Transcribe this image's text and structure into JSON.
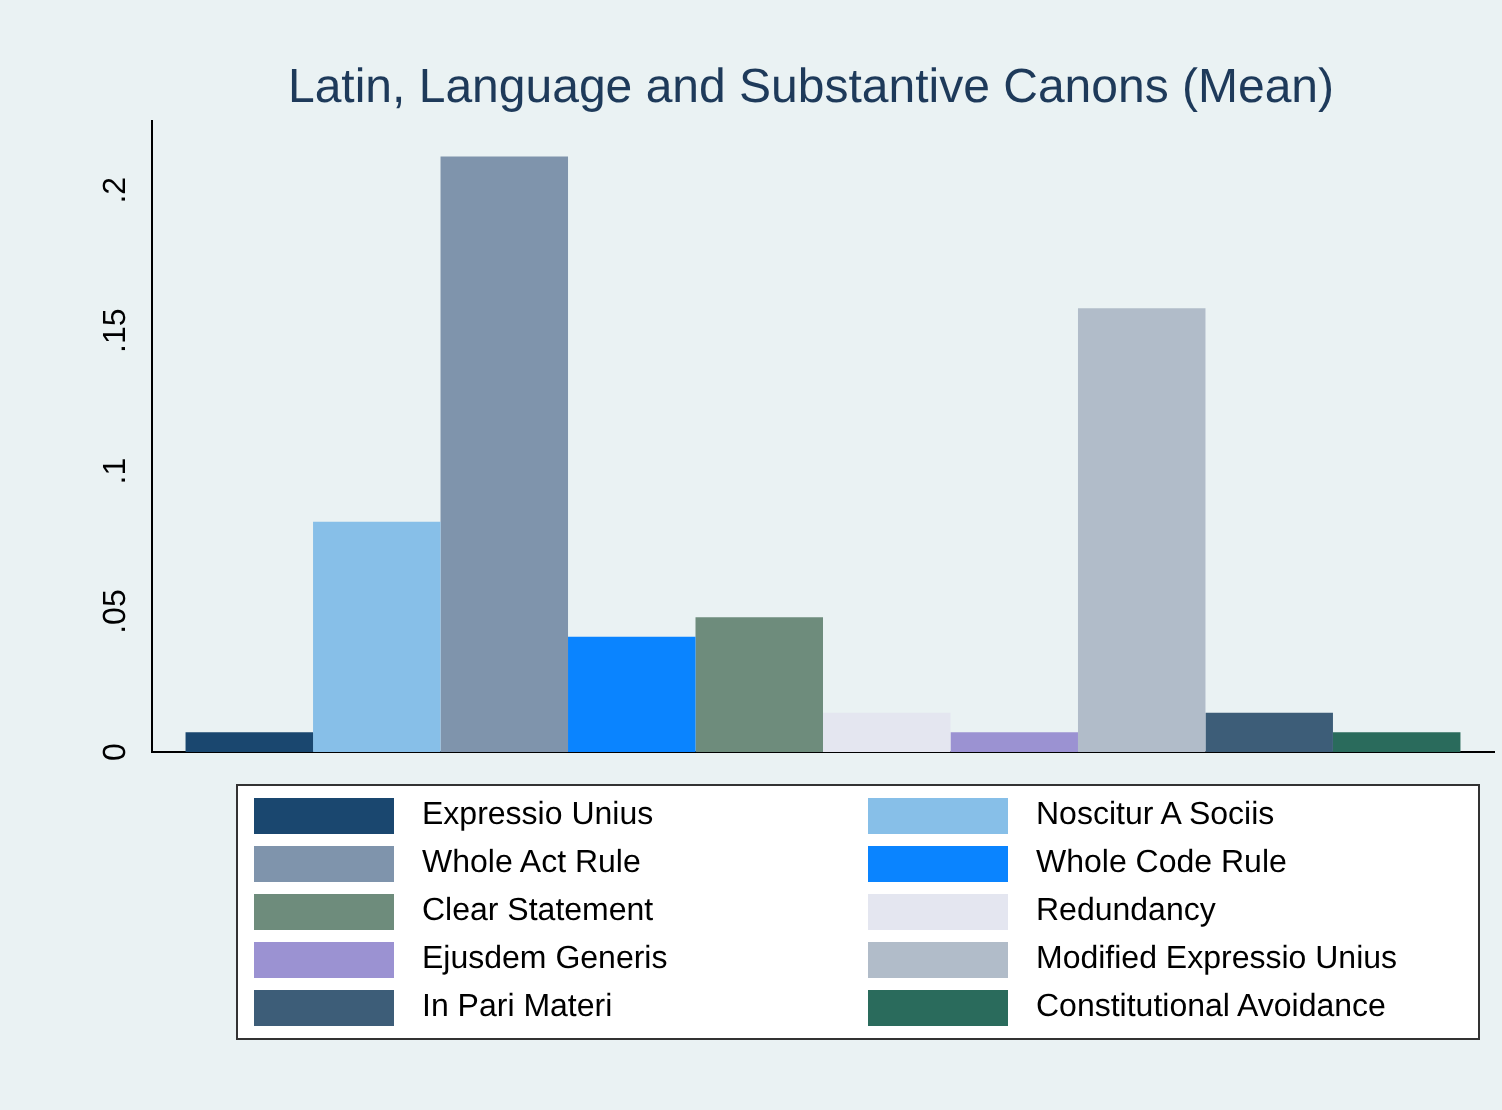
{
  "chart_data": {
    "type": "bar",
    "title": "Latin, Language and Substantive Canons (Mean)",
    "categories": [
      null
    ],
    "series": [
      {
        "name": "Expressio Unius",
        "color": "#1a476f",
        "values": [
          0.007
        ]
      },
      {
        "name": "Noscitur A Sociis",
        "color": "#87bfe8",
        "values": [
          0.082
        ]
      },
      {
        "name": "Whole Act Rule",
        "color": "#7f94ac",
        "values": [
          0.212
        ]
      },
      {
        "name": "Whole Code Rule",
        "color": "#0a84ff",
        "values": [
          0.041
        ]
      },
      {
        "name": "Clear Statement",
        "color": "#6e8c7c",
        "values": [
          0.048
        ]
      },
      {
        "name": "Redundancy",
        "color": "#e4e6f0",
        "values": [
          0.014
        ]
      },
      {
        "name": "Ejusdem Generis",
        "color": "#9b92d2",
        "values": [
          0.007
        ]
      },
      {
        "name": "Modified Expressio Unius",
        "color": "#b1bcc9",
        "values": [
          0.158
        ]
      },
      {
        "name": "In Pari Materi",
        "color": "#3d5d78",
        "values": [
          0.014
        ]
      },
      {
        "name": "Constitutional Avoidance",
        "color": "#2a6b5c",
        "values": [
          0.007
        ]
      }
    ],
    "ylim": [
      0,
      0.225
    ],
    "yticks": [
      0,
      {
        "value": 0.05,
        "label": ".05"
      },
      {
        "value": 0.1,
        "label": ".1"
      },
      {
        "value": 0.15,
        "label": ".15"
      },
      {
        "value": 0.2,
        "label": ".2"
      }
    ],
    "grid": false,
    "legend": "bottom",
    "tick_labels": "y"
  }
}
